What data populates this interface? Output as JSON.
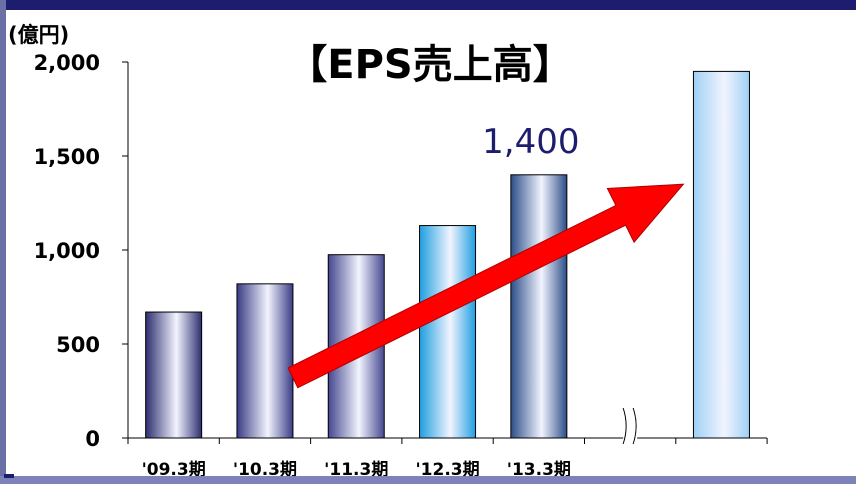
{
  "chart_data": {
    "type": "bar",
    "title": "【EPS売上高】",
    "ylabel": "(億円)",
    "ylim": [
      0,
      2000
    ],
    "yticks": [
      0,
      500,
      1000,
      1500,
      2000
    ],
    "ytick_labels": [
      "0",
      "500",
      "1,000",
      "1,500",
      "2,000"
    ],
    "categories": [
      "'09.3期",
      "'10.3期",
      "'11.3期",
      "'12.3期",
      "'13.3期",
      ""
    ],
    "values": [
      670,
      820,
      975,
      1130,
      1400,
      1950
    ],
    "bar_colors": [
      "#2d2e70",
      "#3a3c85",
      "#45478f",
      "#1f9fe0",
      "#2c4e88",
      "#9fd0f4"
    ],
    "data_labels": [
      {
        "category_index": 4,
        "text": "1,400"
      }
    ],
    "axis_break_after_index": 4,
    "grid": false,
    "annotation": "red upward-trend arrow"
  },
  "colors": {
    "frame_dark": "#1e1c6e",
    "frame_light": "#7d82b8",
    "label_color": "#1e1c6e",
    "arrow": "#ff0000"
  }
}
